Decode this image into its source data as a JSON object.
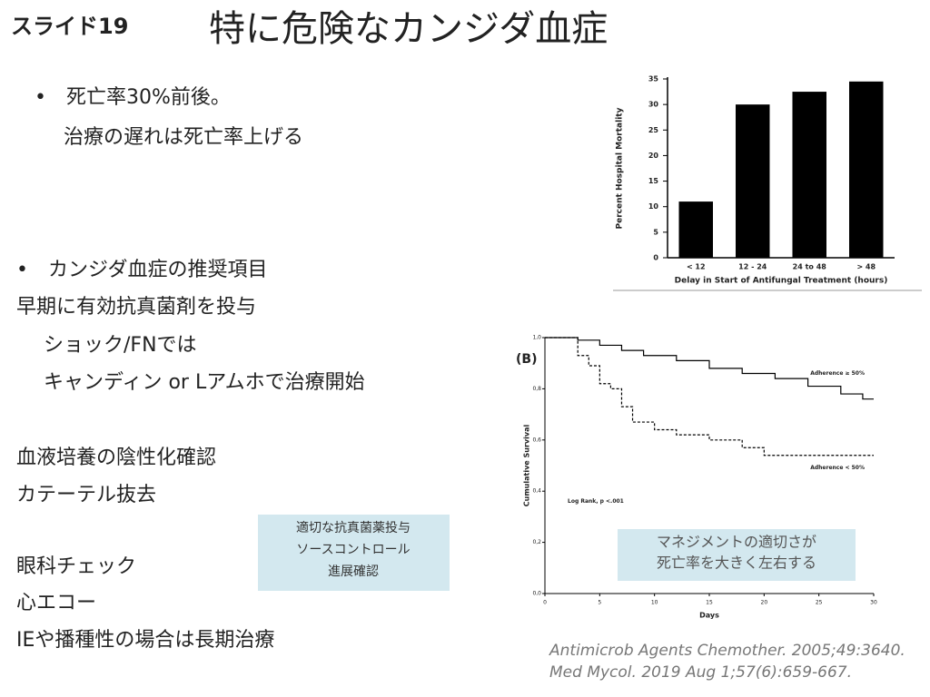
{
  "header": {
    "label": "スライド19",
    "title": "特に危険なカンジダ血症"
  },
  "body": {
    "lines": [
      "•　死亡率30%前後。",
      "治療の遅れは死亡率上げる",
      "•　カンジダ血症の推奨項目",
      "早期に有効抗真菌剤を投与",
      "ショック/FNでは",
      "キャンディン or Lアムホで治療開始",
      "血液培養の陰性化確認",
      "カテーテル抜去",
      "眼科チェック",
      "心エコー",
      "IEや播種性の場合は長期治療"
    ]
  },
  "callout": {
    "lines": [
      "適切な抗真菌薬投与",
      "ソースコントロール",
      "進展確認"
    ]
  },
  "note": {
    "lines": [
      "マネジメントの適切さが",
      "死亡率を大きく左右する"
    ]
  },
  "citations": [
    "Antimicrob Agents Chemother. 2005;49:3640.",
    "Med Mycol. 2019 Aug 1;57(6):659-667."
  ],
  "chart_data": [
    {
      "type": "bar",
      "y_label": "Percent Hospital Mortality",
      "x_label": "Delay in Start of Antifungal Treatment (hours)",
      "categories": [
        "< 12",
        "12 - 24",
        "24 to 48",
        "> 48"
      ],
      "values": [
        11,
        30,
        32.5,
        34.5
      ],
      "color": "#000000",
      "ylim": [
        0,
        35
      ],
      "yticks": [
        0,
        5,
        10,
        15,
        20,
        25,
        30,
        35
      ]
    },
    {
      "type": "line",
      "title": "(B)",
      "y_label": "Cumulative Survival",
      "x_label": "Days",
      "annotation": "Log Rank, p <.001",
      "xlim": [
        0,
        30
      ],
      "xticks": [
        0,
        5,
        10,
        15,
        20,
        25,
        30
      ],
      "ylim": [
        0,
        1
      ],
      "yticks": [
        {
          "value": 0,
          "label": "0,0"
        },
        {
          "value": 0.2,
          "label": "0,2"
        },
        {
          "value": 0.4,
          "label": "0,4"
        },
        {
          "value": 0.6,
          "label": "0,6"
        },
        {
          "value": 0.8,
          "label": "0,8"
        },
        {
          "value": 1,
          "label": "1,0"
        }
      ],
      "series": [
        {
          "name": "Adherence ≥ 50%",
          "color": "#000000",
          "dashed": false,
          "x": [
            0,
            3,
            3,
            5,
            5,
            7,
            7,
            9,
            9,
            12,
            12,
            15,
            15,
            18,
            18,
            21,
            21,
            24,
            24,
            27,
            27,
            29,
            29,
            30
          ],
          "values": [
            1,
            1,
            0.99,
            0.99,
            0.97,
            0.97,
            0.95,
            0.95,
            0.93,
            0.93,
            0.91,
            0.91,
            0.88,
            0.88,
            0.86,
            0.86,
            0.84,
            0.84,
            0.81,
            0.81,
            0.78,
            0.78,
            0.76,
            0.76
          ]
        },
        {
          "name": "Adherence < 50%",
          "color": "#000000",
          "dashed": true,
          "x": [
            0,
            3,
            3,
            4,
            4,
            5,
            5,
            6,
            6,
            7,
            7,
            8,
            8,
            10,
            10,
            12,
            12,
            15,
            15,
            18,
            18,
            20,
            20,
            30
          ],
          "values": [
            1,
            1,
            0.93,
            0.93,
            0.89,
            0.89,
            0.82,
            0.82,
            0.8,
            0.8,
            0.73,
            0.73,
            0.67,
            0.67,
            0.64,
            0.64,
            0.62,
            0.62,
            0.6,
            0.6,
            0.57,
            0.57,
            0.54,
            0.54
          ]
        }
      ]
    }
  ]
}
